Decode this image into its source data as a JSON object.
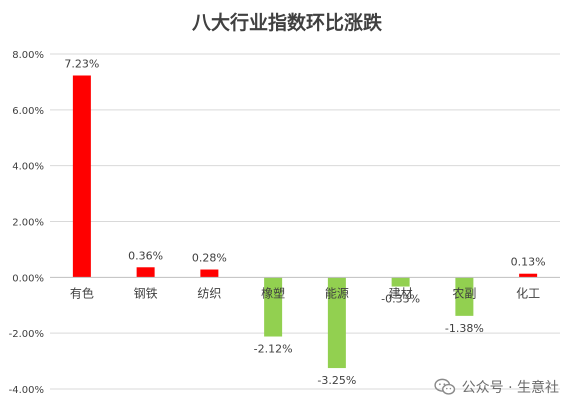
{
  "chart_data": {
    "type": "bar",
    "title": "八大行业指数环比涨跌",
    "categories": [
      "有色",
      "钢铁",
      "纺织",
      "橡塑",
      "能源",
      "建材",
      "农副",
      "化工"
    ],
    "values": [
      7.23,
      0.36,
      0.28,
      -2.12,
      -3.25,
      -0.33,
      -1.38,
      0.13
    ],
    "value_labels": [
      "7.23%",
      "0.36%",
      "0.28%",
      "-2.12%",
      "-3.25%",
      "-0.33%",
      "-1.38%",
      "0.13%"
    ],
    "ylim": [
      -4,
      8
    ],
    "yticks": [
      -4,
      -2,
      0,
      2,
      4,
      6,
      8
    ],
    "ytick_labels": [
      "-4.00%",
      "-2.00%",
      "0.00%",
      "2.00%",
      "4.00%",
      "6.00%",
      "8.00%"
    ],
    "grid": true,
    "colors": {
      "positive": "#ff0000",
      "negative": "#92d050",
      "grid": "#d9d9d9",
      "axis": "#bfbfbf",
      "text": "#404040"
    }
  },
  "watermark": {
    "text": "公众号 · 生意社",
    "icon": "wechat-icon"
  }
}
